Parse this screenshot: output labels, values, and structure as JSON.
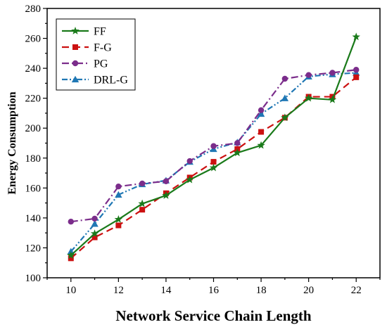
{
  "chart_data": {
    "type": "line",
    "title": "",
    "xlabel": "Network Service Chain Length",
    "ylabel": "Energy Consumption",
    "xlim": [
      9,
      23
    ],
    "ylim": [
      100,
      280
    ],
    "xticks": [
      10,
      12,
      14,
      16,
      18,
      20,
      22
    ],
    "yticks": [
      100,
      120,
      140,
      160,
      180,
      200,
      220,
      240,
      260,
      280
    ],
    "grid": false,
    "legend_position": "top-left",
    "x": [
      10,
      11,
      12,
      13,
      14,
      15,
      16,
      17,
      18,
      19,
      20,
      21,
      22
    ],
    "series": [
      {
        "name": "FF",
        "color": "#1a7a1a",
        "marker": "star",
        "dash": "solid",
        "values": [
          115,
          129.5,
          139,
          149.5,
          155,
          165.5,
          173.5,
          183.5,
          188.5,
          207,
          220,
          219,
          261
        ]
      },
      {
        "name": "F-G",
        "color": "#cc1111",
        "marker": "square",
        "dash": "dash",
        "values": [
          113,
          127,
          135,
          145.5,
          156.5,
          167,
          177.5,
          186,
          197.5,
          207,
          221,
          221,
          234
        ]
      },
      {
        "name": "PG",
        "color": "#7b2d8b",
        "marker": "circle",
        "dash": "dashdot",
        "values": [
          137.5,
          139.5,
          161,
          163,
          164.5,
          178,
          188,
          190,
          212,
          233,
          235.5,
          237,
          239
        ]
      },
      {
        "name": "DRL-G",
        "color": "#1f77b4",
        "marker": "triangle",
        "dash": "dashdotdot",
        "values": [
          117.5,
          136,
          155.5,
          162.5,
          165,
          177.5,
          186,
          190.5,
          209.5,
          220,
          234.5,
          236,
          237
        ]
      }
    ]
  }
}
